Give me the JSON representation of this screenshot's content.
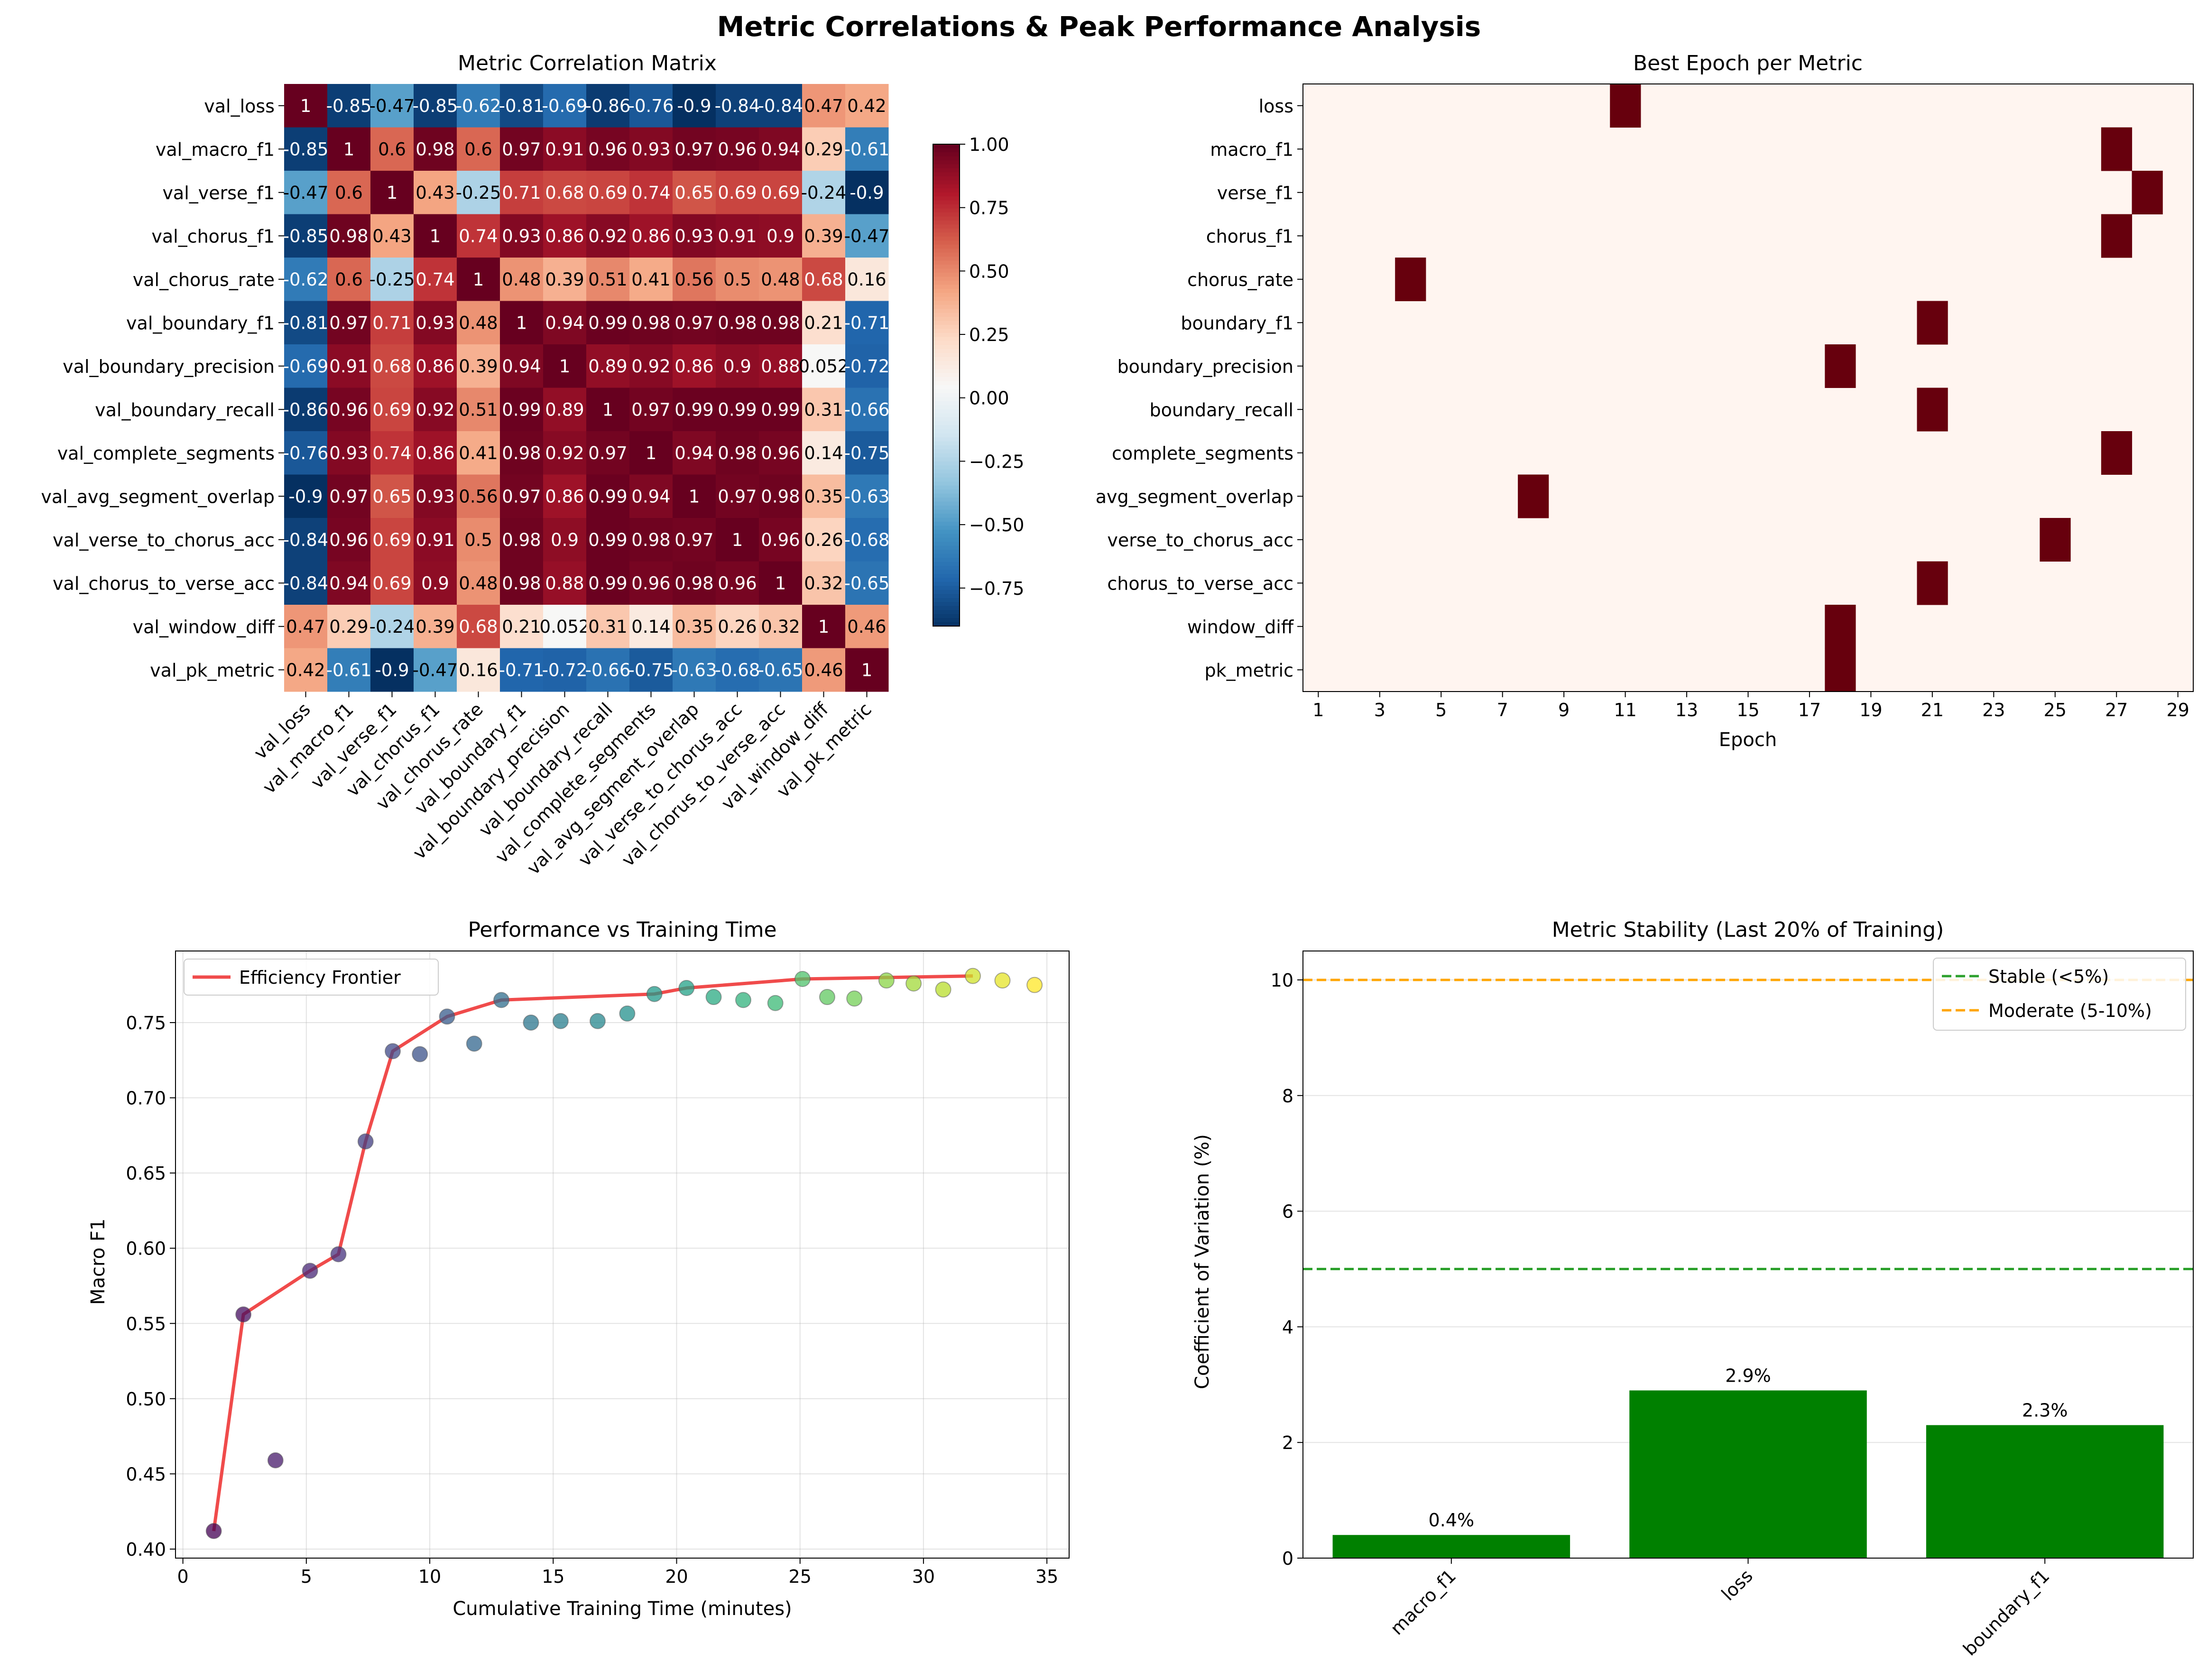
{
  "figure": {
    "title": "Metric Correlations & Peak Performance Analysis"
  },
  "chart_data": [
    {
      "type": "heatmap",
      "title": "Metric Correlation Matrix",
      "labels": [
        "val_loss",
        "val_macro_f1",
        "val_verse_f1",
        "val_chorus_f1",
        "val_chorus_rate",
        "val_boundary_f1",
        "val_boundary_precision",
        "val_boundary_recall",
        "val_complete_segments",
        "val_avg_segment_overlap",
        "val_verse_to_chorus_acc",
        "val_chorus_to_verse_acc",
        "val_window_diff",
        "val_pk_metric"
      ],
      "matrix": [
        [
          "1",
          "-0.85",
          "-0.47",
          "-0.85",
          "-0.62",
          "-0.81",
          "-0.69",
          "-0.86",
          "-0.76",
          "-0.9",
          "-0.84",
          "-0.84",
          "0.47",
          "0.42"
        ],
        [
          "-0.85",
          "1",
          "0.6",
          "0.98",
          "0.6",
          "0.97",
          "0.91",
          "0.96",
          "0.93",
          "0.97",
          "0.96",
          "0.94",
          "0.29",
          "-0.61"
        ],
        [
          "-0.47",
          "0.6",
          "1",
          "0.43",
          "-0.25",
          "0.71",
          "0.68",
          "0.69",
          "0.74",
          "0.65",
          "0.69",
          "0.69",
          "-0.24",
          "-0.9"
        ],
        [
          "-0.85",
          "0.98",
          "0.43",
          "1",
          "0.74",
          "0.93",
          "0.86",
          "0.92",
          "0.86",
          "0.93",
          "0.91",
          "0.9",
          "0.39",
          "-0.47"
        ],
        [
          "-0.62",
          "0.6",
          "-0.25",
          "0.74",
          "1",
          "0.48",
          "0.39",
          "0.51",
          "0.41",
          "0.56",
          "0.5",
          "0.48",
          "0.68",
          "0.16"
        ],
        [
          "-0.81",
          "0.97",
          "0.71",
          "0.93",
          "0.48",
          "1",
          "0.94",
          "0.99",
          "0.98",
          "0.97",
          "0.98",
          "0.98",
          "0.21",
          "-0.71"
        ],
        [
          "-0.69",
          "0.91",
          "0.68",
          "0.86",
          "0.39",
          "0.94",
          "1",
          "0.89",
          "0.92",
          "0.86",
          "0.9",
          "0.88",
          "0.052",
          "-0.72"
        ],
        [
          "-0.86",
          "0.96",
          "0.69",
          "0.92",
          "0.51",
          "0.99",
          "0.89",
          "1",
          "0.97",
          "0.99",
          "0.99",
          "0.99",
          "0.31",
          "-0.66"
        ],
        [
          "-0.76",
          "0.93",
          "0.74",
          "0.86",
          "0.41",
          "0.98",
          "0.92",
          "0.97",
          "1",
          "0.94",
          "0.98",
          "0.96",
          "0.14",
          "-0.75"
        ],
        [
          "-0.9",
          "0.97",
          "0.65",
          "0.93",
          "0.56",
          "0.97",
          "0.86",
          "0.99",
          "0.94",
          "1",
          "0.97",
          "0.98",
          "0.35",
          "-0.63"
        ],
        [
          "-0.84",
          "0.96",
          "0.69",
          "0.91",
          "0.5",
          "0.98",
          "0.9",
          "0.99",
          "0.98",
          "0.97",
          "1",
          "0.96",
          "0.26",
          "-0.68"
        ],
        [
          "-0.84",
          "0.94",
          "0.69",
          "0.9",
          "0.48",
          "0.98",
          "0.88",
          "0.99",
          "0.96",
          "0.98",
          "0.96",
          "1",
          "0.32",
          "-0.65"
        ],
        [
          "0.47",
          "0.29",
          "-0.24",
          "0.39",
          "0.68",
          "0.21",
          "0.052",
          "0.31",
          "0.14",
          "0.35",
          "0.26",
          "0.32",
          "1",
          "0.46"
        ],
        [
          "0.42",
          "-0.61",
          "-0.9",
          "-0.47",
          "0.16",
          "-0.71",
          "-0.72",
          "-0.66",
          "-0.75",
          "-0.63",
          "-0.68",
          "-0.65",
          "0.46",
          "1"
        ]
      ],
      "colorbar": {
        "range": [
          -0.9,
          1.0
        ],
        "ticks": [
          "1.00",
          "0.75",
          "0.50",
          "0.25",
          "0.00",
          "−0.25",
          "−0.50",
          "−0.75"
        ],
        "tick_values": [
          1.0,
          0.75,
          0.5,
          0.25,
          0.0,
          -0.25,
          -0.5,
          -0.75
        ],
        "colormap": "RdBu_r"
      }
    },
    {
      "type": "heatmap",
      "title": "Best Epoch per Metric",
      "xlabel": "Epoch",
      "metrics": [
        "loss",
        "macro_f1",
        "verse_f1",
        "chorus_f1",
        "chorus_rate",
        "boundary_f1",
        "boundary_precision",
        "boundary_recall",
        "complete_segments",
        "avg_segment_overlap",
        "verse_to_chorus_acc",
        "chorus_to_verse_acc",
        "window_diff",
        "pk_metric"
      ],
      "best_epoch": [
        11,
        27,
        28,
        27,
        4,
        21,
        18,
        21,
        27,
        8,
        25,
        21,
        18,
        18
      ],
      "epoch_range": [
        1,
        29
      ],
      "xticks": [
        "1",
        "3",
        "5",
        "7",
        "9",
        "11",
        "13",
        "15",
        "17",
        "19",
        "21",
        "23",
        "25",
        "27",
        "29"
      ],
      "colors": {
        "background": "#fff5f0",
        "best": "#67000d"
      }
    },
    {
      "type": "scatter",
      "title": "Performance vs Training Time",
      "xlabel": "Cumulative Training Time (minutes)",
      "ylabel": "Macro F1",
      "xlim": [
        -0.3,
        35.9
      ],
      "ylim": [
        0.394,
        0.7976
      ],
      "xticks": [
        "0",
        "5",
        "10",
        "15",
        "20",
        "25",
        "30",
        "35"
      ],
      "yticks": [
        "0.40",
        "0.45",
        "0.50",
        "0.55",
        "0.60",
        "0.65",
        "0.70",
        "0.75"
      ],
      "points": [
        [
          1.25,
          0.412
        ],
        [
          2.45,
          0.556
        ],
        [
          3.75,
          0.459
        ],
        [
          5.15,
          0.585
        ],
        [
          6.3,
          0.596
        ],
        [
          7.4,
          0.671
        ],
        [
          8.5,
          0.731
        ],
        [
          9.6,
          0.729
        ],
        [
          10.7,
          0.754
        ],
        [
          11.8,
          0.736
        ],
        [
          12.9,
          0.765
        ],
        [
          14.1,
          0.75
        ],
        [
          15.3,
          0.751
        ],
        [
          16.8,
          0.751
        ],
        [
          18.0,
          0.756
        ],
        [
          19.1,
          0.769
        ],
        [
          20.4,
          0.773
        ],
        [
          21.5,
          0.767
        ],
        [
          22.7,
          0.765
        ],
        [
          24.0,
          0.763
        ],
        [
          25.1,
          0.779
        ],
        [
          26.1,
          0.767
        ],
        [
          27.2,
          0.766
        ],
        [
          28.5,
          0.778
        ],
        [
          29.6,
          0.776
        ],
        [
          30.8,
          0.772
        ],
        [
          32.0,
          0.781
        ],
        [
          33.2,
          0.778
        ],
        [
          34.5,
          0.775
        ]
      ],
      "frontier": {
        "name": "Efficiency Frontier",
        "points": [
          [
            1.25,
            0.412
          ],
          [
            2.45,
            0.556
          ],
          [
            5.15,
            0.585
          ],
          [
            6.3,
            0.596
          ],
          [
            7.4,
            0.671
          ],
          [
            8.5,
            0.731
          ],
          [
            10.7,
            0.754
          ],
          [
            12.9,
            0.765
          ],
          [
            19.1,
            0.769
          ],
          [
            20.4,
            0.773
          ],
          [
            25.1,
            0.779
          ],
          [
            32.0,
            0.781
          ]
        ],
        "color": "#f04b4b"
      },
      "legend": "upper left",
      "colormap": "viridis",
      "grid": true
    },
    {
      "type": "bar",
      "title": "Metric Stability (Last 20% of Training)",
      "ylabel": "Coefficient of Variation (%)",
      "categories": [
        "macro_f1",
        "loss",
        "boundary_f1"
      ],
      "values": [
        0.4,
        2.9,
        2.3
      ],
      "value_labels": [
        "0.4%",
        "2.9%",
        "2.3%"
      ],
      "ylim": [
        0,
        10.5
      ],
      "yticks": [
        "0",
        "2",
        "4",
        "6",
        "8",
        "10"
      ],
      "bar_color": "#008000",
      "thresholds": [
        {
          "name": "Stable (<5%)",
          "value": 5,
          "color": "#2ca02c"
        },
        {
          "name": "Moderate (5-10%)",
          "value": 10,
          "color": "#ffa500"
        }
      ],
      "legend": "upper right",
      "grid": true
    }
  ]
}
